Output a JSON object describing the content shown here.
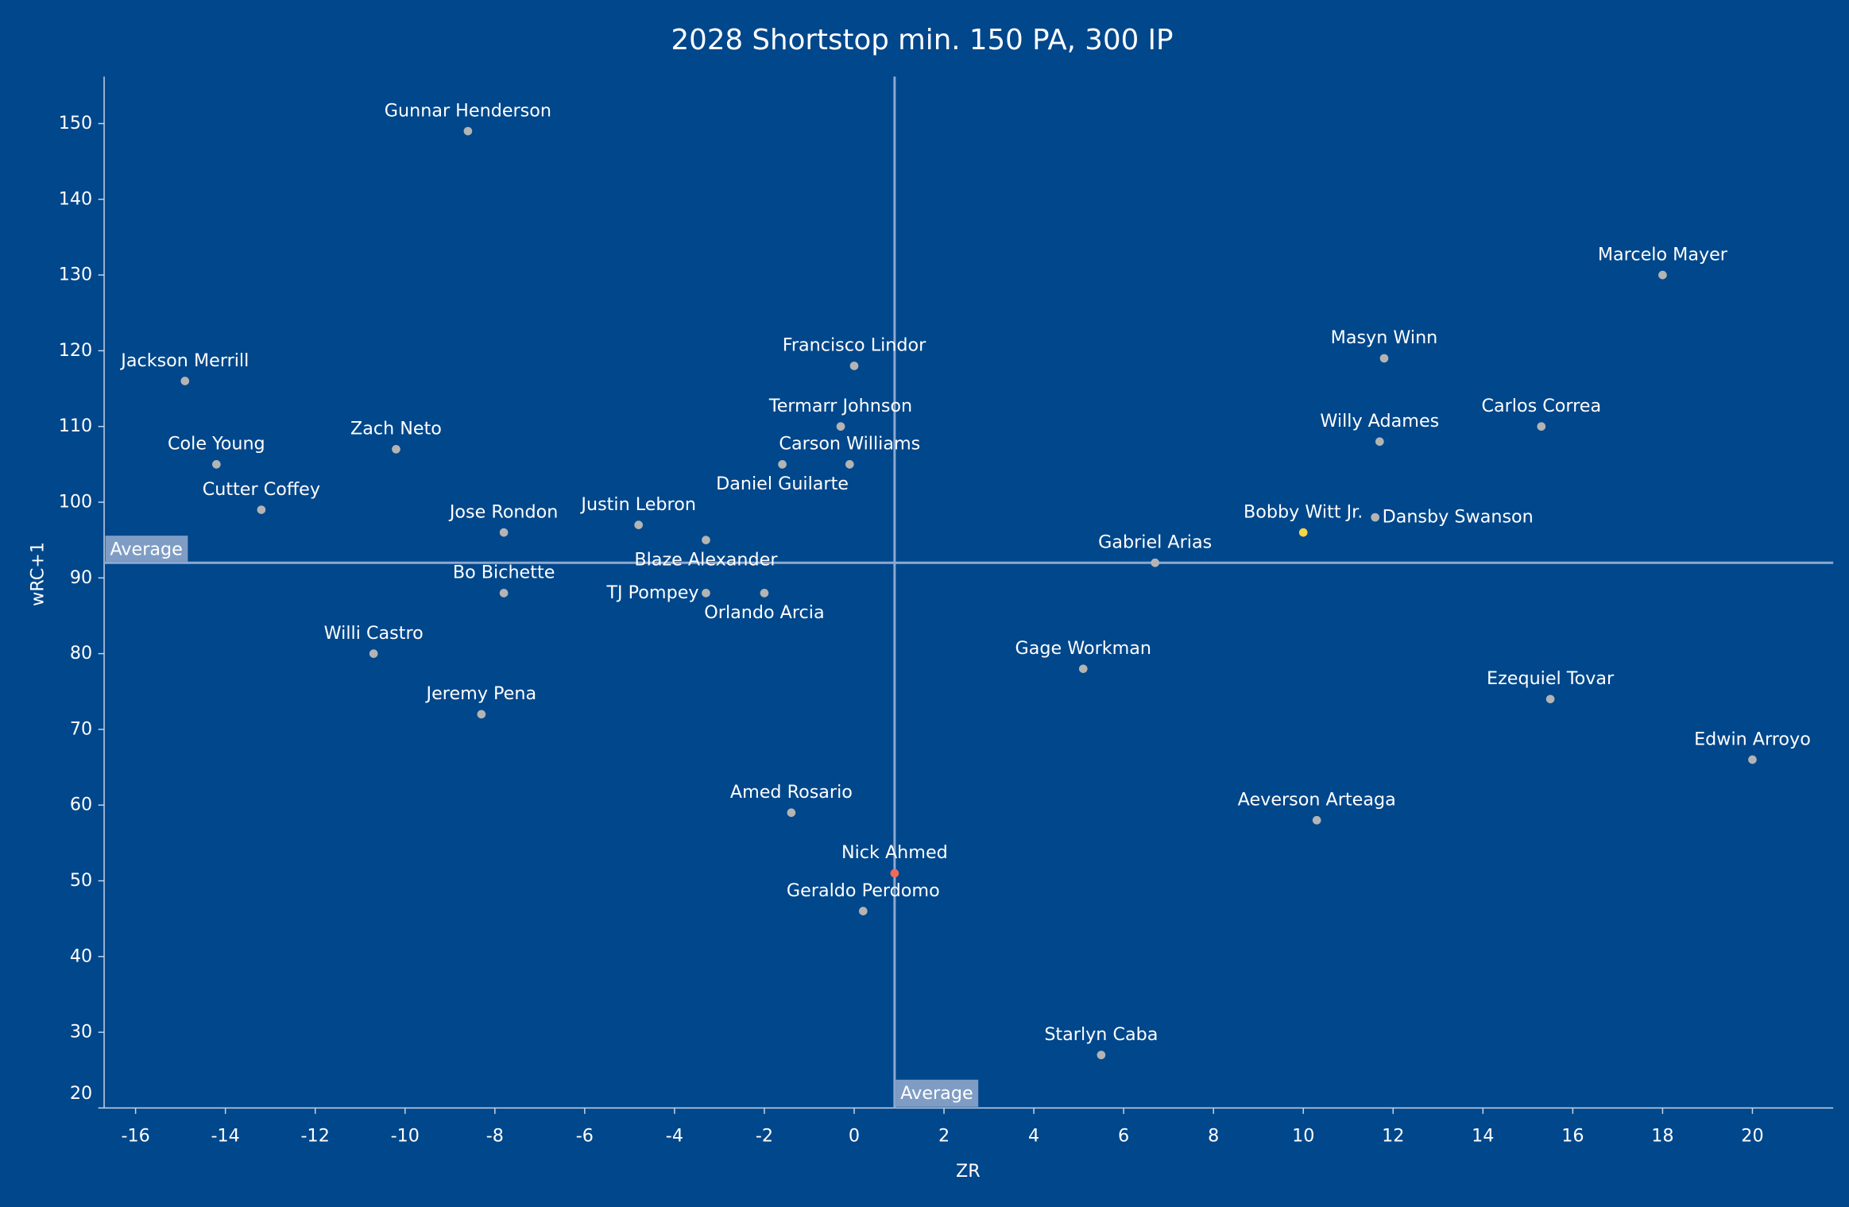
{
  "chart_data": {
    "type": "scatter",
    "title": "2028 Shortstop min. 150 PA, 300 IP",
    "x_label": "ZR",
    "y_label": "wRC+1",
    "xlim": [
      -16.7,
      21.8
    ],
    "ylim": [
      20,
      156.2
    ],
    "xticks": [
      -16,
      -14,
      -12,
      -10,
      -8,
      -6,
      -4,
      -2,
      0,
      2,
      4,
      6,
      8,
      10,
      12,
      14,
      16,
      18,
      20
    ],
    "yticks": [
      20,
      30,
      40,
      50,
      60,
      70,
      80,
      90,
      100,
      110,
      120,
      130,
      140,
      150
    ],
    "reference_lines": {
      "x": 0.9,
      "y": 92,
      "label": "Average"
    },
    "points": [
      {
        "label": "Gunnar Henderson",
        "x": -8.6,
        "y": 149,
        "color": "#b4b4b4"
      },
      {
        "label": "Marcelo Mayer",
        "x": 18,
        "y": 130,
        "color": "#b4b4b4"
      },
      {
        "label": "Jackson Merrill",
        "x": -14.9,
        "y": 116,
        "color": "#b4b4b4"
      },
      {
        "label": "Masyn Winn",
        "x": 11.8,
        "y": 119,
        "color": "#b4b4b4"
      },
      {
        "label": "Francisco Lindor",
        "x": 0,
        "y": 118,
        "color": "#b4b4b4"
      },
      {
        "label": "Termarr Johnson",
        "x": -0.3,
        "y": 110,
        "color": "#b4b4b4"
      },
      {
        "label": "Carlos Correa",
        "x": 15.3,
        "y": 110,
        "color": "#b4b4b4"
      },
      {
        "label": "Willy Adames",
        "x": 11.7,
        "y": 108,
        "color": "#b4b4b4"
      },
      {
        "label": "Zach Neto",
        "x": -10.2,
        "y": 107,
        "color": "#b4b4b4"
      },
      {
        "label": "Cole Young",
        "x": -14.2,
        "y": 105,
        "color": "#b4b4b4"
      },
      {
        "label": "Carson Williams",
        "x": -0.1,
        "y": 105,
        "color": "#b4b4b4"
      },
      {
        "label": "Daniel Guilarte",
        "x": -1.6,
        "y": 105,
        "color": "#b4b4b4"
      },
      {
        "label": "Cutter Coffey",
        "x": -13.2,
        "y": 99,
        "color": "#b4b4b4"
      },
      {
        "label": "Dansby Swanson",
        "x": 11.6,
        "y": 98,
        "color": "#b4b4b4"
      },
      {
        "label": "Justin Lebron",
        "x": -4.8,
        "y": 97,
        "color": "#b4b4b4"
      },
      {
        "label": "Bobby Witt Jr.",
        "x": 10,
        "y": 96,
        "color": "#f5d547"
      },
      {
        "label": "Jose Rondon",
        "x": -7.8,
        "y": 96,
        "color": "#b4b4b4"
      },
      {
        "label": "Blaze Alexander",
        "x": -3.3,
        "y": 95,
        "color": "#b4b4b4"
      },
      {
        "label": "Gabriel Arias",
        "x": 6.7,
        "y": 92,
        "color": "#b4b4b4"
      },
      {
        "label": "Bo Bichette",
        "x": -7.8,
        "y": 88,
        "color": "#b4b4b4"
      },
      {
        "label": "TJ Pompey",
        "x": -3.3,
        "y": 88,
        "color": "#b4b4b4"
      },
      {
        "label": "Orlando Arcia",
        "x": -2,
        "y": 88,
        "color": "#b4b4b4"
      },
      {
        "label": "Willi Castro",
        "x": -10.7,
        "y": 80,
        "color": "#b4b4b4"
      },
      {
        "label": "Gage Workman",
        "x": 5.1,
        "y": 78,
        "color": "#b4b4b4"
      },
      {
        "label": "Ezequiel Tovar",
        "x": 15.5,
        "y": 74,
        "color": "#b4b4b4"
      },
      {
        "label": "Jeremy Pena",
        "x": -8.3,
        "y": 72,
        "color": "#b4b4b4"
      },
      {
        "label": "Edwin Arroyo",
        "x": 20,
        "y": 66,
        "color": "#b4b4b4"
      },
      {
        "label": "Amed Rosario",
        "x": -1.4,
        "y": 59,
        "color": "#b4b4b4"
      },
      {
        "label": "Aeverson Arteaga",
        "x": 10.3,
        "y": 58,
        "color": "#b4b4b4"
      },
      {
        "label": "Nick Ahmed",
        "x": 0.9,
        "y": 51,
        "color": "#f06a5a"
      },
      {
        "label": "Geraldo Perdomo",
        "x": 0.2,
        "y": 46,
        "color": "#b4b4b4"
      },
      {
        "label": "Starlyn Caba",
        "x": 5.5,
        "y": 27,
        "color": "#b4b4b4"
      }
    ]
  }
}
